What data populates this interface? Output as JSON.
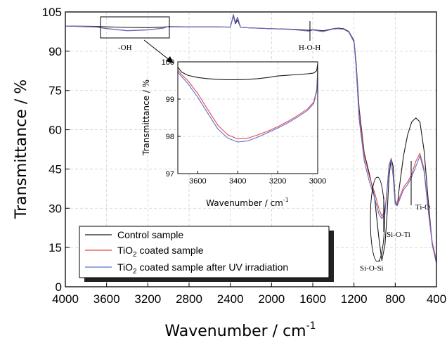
{
  "chart_data": {
    "type": "line",
    "xlabel": "Wavenumber / cm",
    "xlabel_sup": "-1",
    "ylabel": "Transmittance / %",
    "xlim": [
      4000,
      400
    ],
    "ylim": [
      0,
      105
    ],
    "xticks": [
      "4000",
      "3600",
      "3200",
      "2800",
      "2400",
      "2000",
      "1600",
      "1200",
      "800",
      "400"
    ],
    "yticks": [
      "0",
      "15",
      "30",
      "45",
      "60",
      "75",
      "90",
      "105"
    ],
    "grid": true,
    "legend_position": "bottom-left",
    "colors": {
      "control": "#1a1a1a",
      "coated": "#e8494b",
      "uv": "#5b6fcf"
    },
    "series": [
      {
        "name": "Control sample",
        "x": [
          4000,
          3700,
          3600,
          3400,
          3200,
          3050,
          3000,
          2950,
          2900,
          2800,
          2600,
          2400,
          2370,
          2350,
          2330,
          2300,
          2200,
          2000,
          1800,
          1640,
          1600,
          1500,
          1400,
          1350,
          1300,
          1250,
          1200,
          1180,
          1150,
          1100,
          1050,
          1000,
          960,
          930,
          900,
          880,
          860,
          840,
          820,
          800,
          780,
          760,
          720,
          680,
          640,
          600,
          560,
          520,
          480,
          440,
          400
        ],
        "y": [
          99.6,
          99.5,
          99.3,
          99.1,
          99.0,
          99.2,
          99.4,
          99.3,
          99.3,
          99.3,
          99.3,
          99.2,
          103.5,
          100.5,
          102.0,
          99.1,
          98.9,
          98.6,
          98.4,
          98.0,
          98.2,
          97.8,
          98.6,
          98.8,
          98.6,
          97.5,
          94.0,
          86.0,
          68.0,
          51.0,
          43.0,
          34.0,
          19.0,
          10.0,
          16.0,
          27.0,
          42.0,
          49.0,
          46.0,
          33.0,
          31.0,
          38.0,
          50.0,
          58.0,
          63.0,
          64.5,
          63.0,
          52.0,
          33.0,
          16.0,
          9.0
        ]
      },
      {
        "name": "TiO2 coated sample",
        "x": [
          4000,
          3700,
          3600,
          3400,
          3200,
          3050,
          3000,
          2950,
          2900,
          2800,
          2600,
          2400,
          2370,
          2350,
          2330,
          2300,
          2200,
          2000,
          1800,
          1640,
          1600,
          1500,
          1400,
          1350,
          1300,
          1250,
          1200,
          1180,
          1150,
          1100,
          1050,
          1000,
          960,
          930,
          900,
          880,
          860,
          840,
          820,
          800,
          780,
          760,
          720,
          680,
          640,
          600,
          560,
          520,
          480,
          440,
          400
        ],
        "y": [
          99.6,
          99.3,
          98.7,
          97.9,
          98.2,
          98.8,
          99.5,
          99.4,
          99.4,
          99.3,
          99.3,
          99.2,
          104.0,
          101.0,
          103.0,
          99.1,
          98.9,
          98.6,
          98.3,
          97.7,
          98.1,
          97.5,
          98.5,
          98.6,
          98.4,
          97.3,
          93.5,
          85.0,
          66.0,
          50.0,
          42.0,
          36.0,
          30.0,
          27.0,
          29.0,
          37.0,
          46.5,
          49.0,
          43.0,
          32.0,
          31.5,
          34.0,
          38.0,
          40.0,
          43.0,
          48.0,
          51.0,
          45.0,
          30.0,
          17.0,
          10.0
        ]
      },
      {
        "name": "TiO2 coated sample after UV irradiation",
        "x": [
          4000,
          3700,
          3600,
          3400,
          3200,
          3050,
          3000,
          2950,
          2900,
          2800,
          2600,
          2400,
          2370,
          2350,
          2330,
          2300,
          2200,
          2000,
          1800,
          1640,
          1600,
          1500,
          1400,
          1350,
          1300,
          1250,
          1200,
          1180,
          1150,
          1100,
          1050,
          1000,
          960,
          930,
          900,
          880,
          860,
          840,
          820,
          800,
          780,
          760,
          720,
          680,
          640,
          600,
          560,
          520,
          480,
          440,
          400
        ],
        "y": [
          99.6,
          99.2,
          98.6,
          97.8,
          98.1,
          98.8,
          99.5,
          99.4,
          99.4,
          99.3,
          99.3,
          99.2,
          104.0,
          101.0,
          103.0,
          99.1,
          98.9,
          98.6,
          98.3,
          97.7,
          98.1,
          97.5,
          98.5,
          98.6,
          98.4,
          97.3,
          93.5,
          84.0,
          64.0,
          48.0,
          40.0,
          34.0,
          28.0,
          26.0,
          28.0,
          36.0,
          46.0,
          48.5,
          42.0,
          31.5,
          31.0,
          33.0,
          37.0,
          39.0,
          42.0,
          46.0,
          50.0,
          44.0,
          29.0,
          16.0,
          9.5
        ]
      }
    ],
    "annotations": [
      {
        "text": "-OH"
      },
      {
        "text": "H-O-H"
      },
      {
        "text": "Si-O-Si"
      },
      {
        "text": "Si-O-Ti"
      },
      {
        "text": "Ti-O"
      }
    ],
    "inset": {
      "xlabel": "Wavenumber / cm",
      "xlabel_sup": "-1",
      "ylabel": "Transmittance / %",
      "xlim": [
        3700,
        3000
      ],
      "ylim": [
        97,
        100
      ],
      "xticks": [
        "3600",
        "3400",
        "3200",
        "3000"
      ],
      "yticks": [
        "97",
        "98",
        "99",
        "100"
      ],
      "series": [
        {
          "name": "Control sample",
          "x": [
            3700,
            3680,
            3650,
            3600,
            3550,
            3500,
            3450,
            3400,
            3350,
            3300,
            3250,
            3200,
            3150,
            3100,
            3050,
            3020,
            3005,
            3000
          ],
          "y": [
            99.86,
            99.72,
            99.64,
            99.58,
            99.55,
            99.53,
            99.52,
            99.52,
            99.53,
            99.55,
            99.58,
            99.62,
            99.64,
            99.66,
            99.68,
            99.7,
            99.76,
            99.95
          ]
        },
        {
          "name": "TiO2 coated sample",
          "x": [
            3700,
            3680,
            3650,
            3600,
            3550,
            3500,
            3450,
            3400,
            3350,
            3300,
            3250,
            3200,
            3150,
            3100,
            3050,
            3020,
            3005,
            3000
          ],
          "y": [
            99.78,
            99.65,
            99.5,
            99.15,
            98.72,
            98.3,
            98.04,
            97.93,
            97.95,
            98.04,
            98.14,
            98.26,
            98.4,
            98.56,
            98.74,
            98.92,
            99.25,
            99.82
          ]
        },
        {
          "name": "TiO2 coated sample after UV irradiation",
          "x": [
            3700,
            3680,
            3650,
            3600,
            3550,
            3500,
            3450,
            3400,
            3350,
            3300,
            3250,
            3200,
            3150,
            3100,
            3050,
            3020,
            3005,
            3000
          ],
          "y": [
            99.72,
            99.6,
            99.42,
            99.05,
            98.62,
            98.2,
            97.95,
            97.85,
            97.88,
            97.98,
            98.1,
            98.22,
            98.36,
            98.52,
            98.7,
            98.88,
            99.2,
            99.78
          ]
        }
      ]
    }
  },
  "legend": {
    "items": [
      {
        "pre": "Control sample",
        "sub": "",
        "post": ""
      },
      {
        "pre": "TiO",
        "sub": "2",
        "post": " coated sample"
      },
      {
        "pre": "TiO",
        "sub": "2",
        "post": " coated sample after UV irradiation"
      }
    ]
  }
}
